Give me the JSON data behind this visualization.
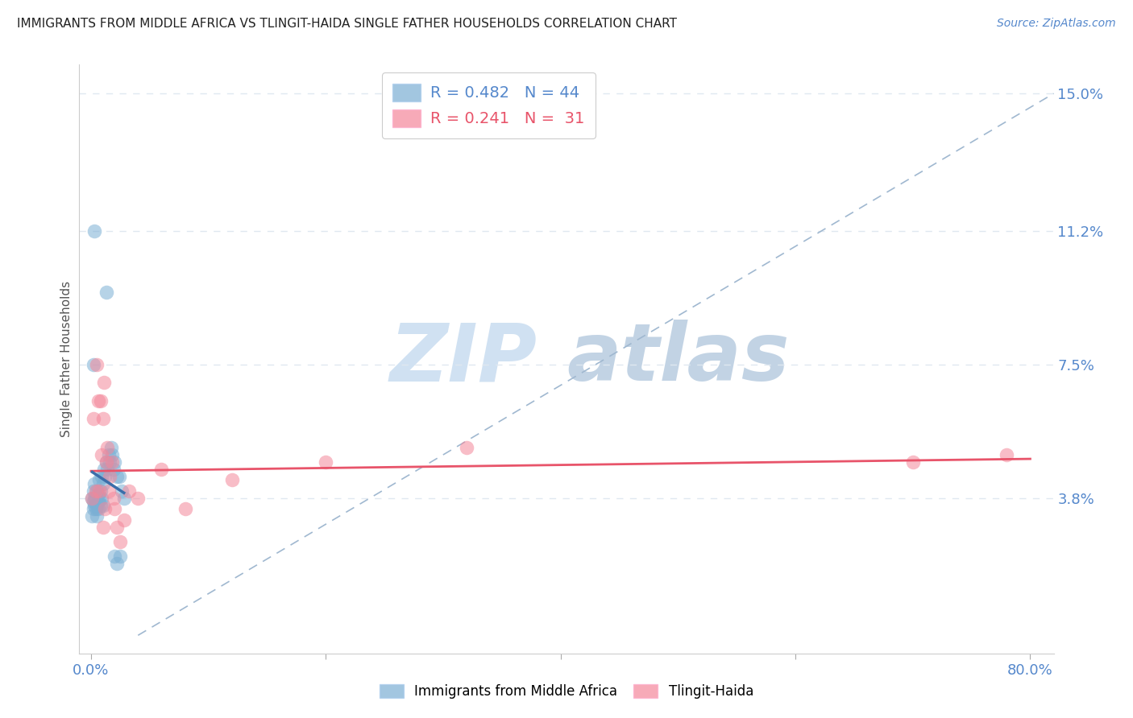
{
  "title": "IMMIGRANTS FROM MIDDLE AFRICA VS TLINGIT-HAIDA SINGLE FATHER HOUSEHOLDS CORRELATION CHART",
  "source_text": "Source: ZipAtlas.com",
  "ylabel": "Single Father Households",
  "xlim": [
    -0.01,
    0.82
  ],
  "ylim": [
    -0.005,
    0.158
  ],
  "x_ticks": [
    0.0,
    0.2,
    0.4,
    0.6,
    0.8
  ],
  "x_tick_labels": [
    "0.0%",
    "",
    "",
    "",
    "80.0%"
  ],
  "y_tick_labels_right": [
    "15.0%",
    "11.2%",
    "7.5%",
    "3.8%"
  ],
  "y_ticks_right": [
    0.15,
    0.112,
    0.075,
    0.038
  ],
  "blue_R": 0.482,
  "blue_N": 44,
  "pink_R": 0.241,
  "pink_N": 31,
  "blue_color": "#7BAFD4",
  "pink_color": "#F4879A",
  "blue_line_color": "#3B6EAA",
  "pink_line_color": "#E8546A",
  "dashed_line_color": "#A0B8D0",
  "grid_color": "#E0E8F0",
  "title_color": "#222222",
  "axis_color": "#5588CC",
  "watermark_zip_color": "#C8DCF0",
  "watermark_atlas_color": "#B8CCE0",
  "blue_x": [
    0.001,
    0.001,
    0.002,
    0.002,
    0.002,
    0.003,
    0.003,
    0.003,
    0.004,
    0.004,
    0.005,
    0.005,
    0.005,
    0.006,
    0.006,
    0.006,
    0.007,
    0.007,
    0.008,
    0.008,
    0.009,
    0.009,
    0.01,
    0.01,
    0.011,
    0.012,
    0.013,
    0.014,
    0.015,
    0.016,
    0.017,
    0.018,
    0.019,
    0.02,
    0.022,
    0.024,
    0.026,
    0.028,
    0.002,
    0.003,
    0.013,
    0.02,
    0.022,
    0.025
  ],
  "blue_y": [
    0.038,
    0.033,
    0.037,
    0.04,
    0.035,
    0.036,
    0.038,
    0.042,
    0.035,
    0.038,
    0.036,
    0.04,
    0.033,
    0.037,
    0.039,
    0.035,
    0.043,
    0.038,
    0.04,
    0.036,
    0.044,
    0.038,
    0.042,
    0.036,
    0.046,
    0.044,
    0.048,
    0.046,
    0.05,
    0.048,
    0.052,
    0.05,
    0.046,
    0.048,
    0.044,
    0.044,
    0.04,
    0.038,
    0.075,
    0.112,
    0.095,
    0.022,
    0.02,
    0.022
  ],
  "pink_x": [
    0.001,
    0.002,
    0.004,
    0.005,
    0.006,
    0.007,
    0.008,
    0.009,
    0.01,
    0.011,
    0.012,
    0.013,
    0.014,
    0.015,
    0.016,
    0.018,
    0.019,
    0.02,
    0.022,
    0.025,
    0.028,
    0.032,
    0.04,
    0.06,
    0.08,
    0.12,
    0.2,
    0.32,
    0.7,
    0.78,
    0.01
  ],
  "pink_y": [
    0.038,
    0.06,
    0.04,
    0.075,
    0.065,
    0.04,
    0.065,
    0.05,
    0.06,
    0.07,
    0.035,
    0.048,
    0.052,
    0.04,
    0.044,
    0.048,
    0.038,
    0.035,
    0.03,
    0.026,
    0.032,
    0.04,
    0.038,
    0.046,
    0.035,
    0.043,
    0.048,
    0.052,
    0.048,
    0.05,
    0.03
  ]
}
